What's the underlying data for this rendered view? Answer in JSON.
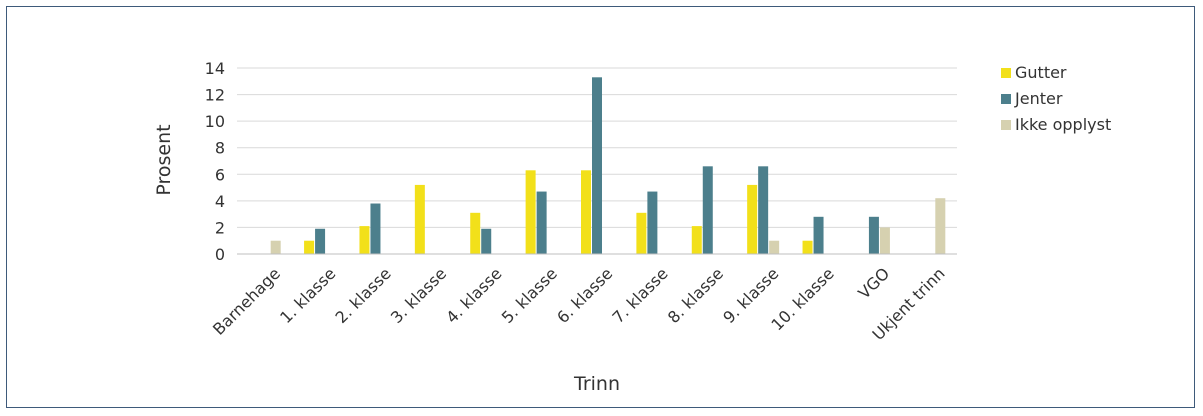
{
  "chart_data": {
    "type": "bar",
    "title": "",
    "xlabel": "Trinn",
    "ylabel": "Prosent",
    "ylim": [
      0,
      14
    ],
    "yticks": [
      0,
      2,
      4,
      6,
      8,
      10,
      12,
      14
    ],
    "grid": true,
    "legend_position": "right",
    "categories": [
      "Barnehage",
      "1. klasse",
      "2. klasse",
      "3. klasse",
      "4. klasse",
      "5. klasse",
      "6. klasse",
      "7. klasse",
      "8. klasse",
      "9. klasse",
      "10. klasse",
      "VGO",
      "Ukjent trinn"
    ],
    "series": [
      {
        "name": "Gutter",
        "color": "#f2e01a",
        "values": [
          0,
          1.0,
          2.1,
          5.2,
          3.1,
          6.3,
          6.3,
          3.1,
          2.1,
          5.2,
          1.0,
          0,
          0
        ]
      },
      {
        "name": "Jenter",
        "color": "#4c7f8c",
        "values": [
          0,
          1.9,
          3.8,
          0,
          1.9,
          4.7,
          13.3,
          4.7,
          6.6,
          6.6,
          2.8,
          2.8,
          0
        ]
      },
      {
        "name": "Ikke opplyst",
        "color": "#d6d1b0",
        "values": [
          1.0,
          0,
          0,
          0,
          0,
          0,
          0,
          0,
          0,
          1.0,
          0,
          2.0,
          4.2
        ]
      }
    ]
  }
}
